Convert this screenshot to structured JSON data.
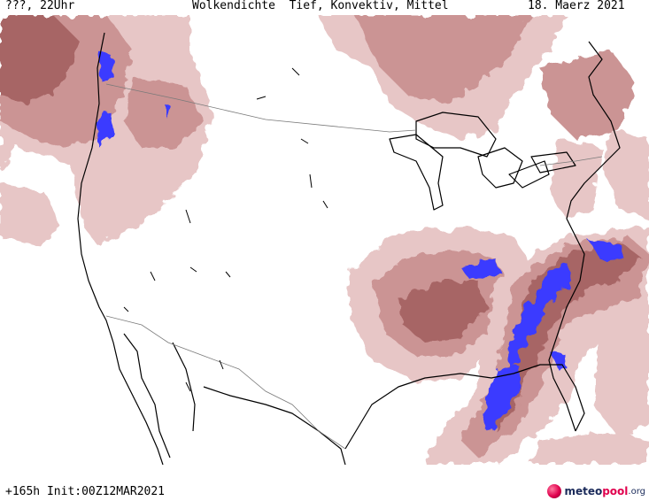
{
  "header": {
    "valid_time": "???, 22Uhr",
    "title": "Wolkendichte  Tief, Konvektiv, Mittel",
    "date": "18. Maerz 2021"
  },
  "footer": {
    "forecast_info": "+165h Init:00Z12MAR2021"
  },
  "logo": {
    "part1": "meteo",
    "part2": "pool",
    "part3": ".org"
  },
  "colors": {
    "cloud_light": "#e6c3c3",
    "cloud_mid": "#c98f8f",
    "cloud_dark": "#a35d5d",
    "convective": "#3a3aff",
    "coastline": "#000000",
    "border": "#7a7a7a",
    "background": "#ffffff"
  }
}
